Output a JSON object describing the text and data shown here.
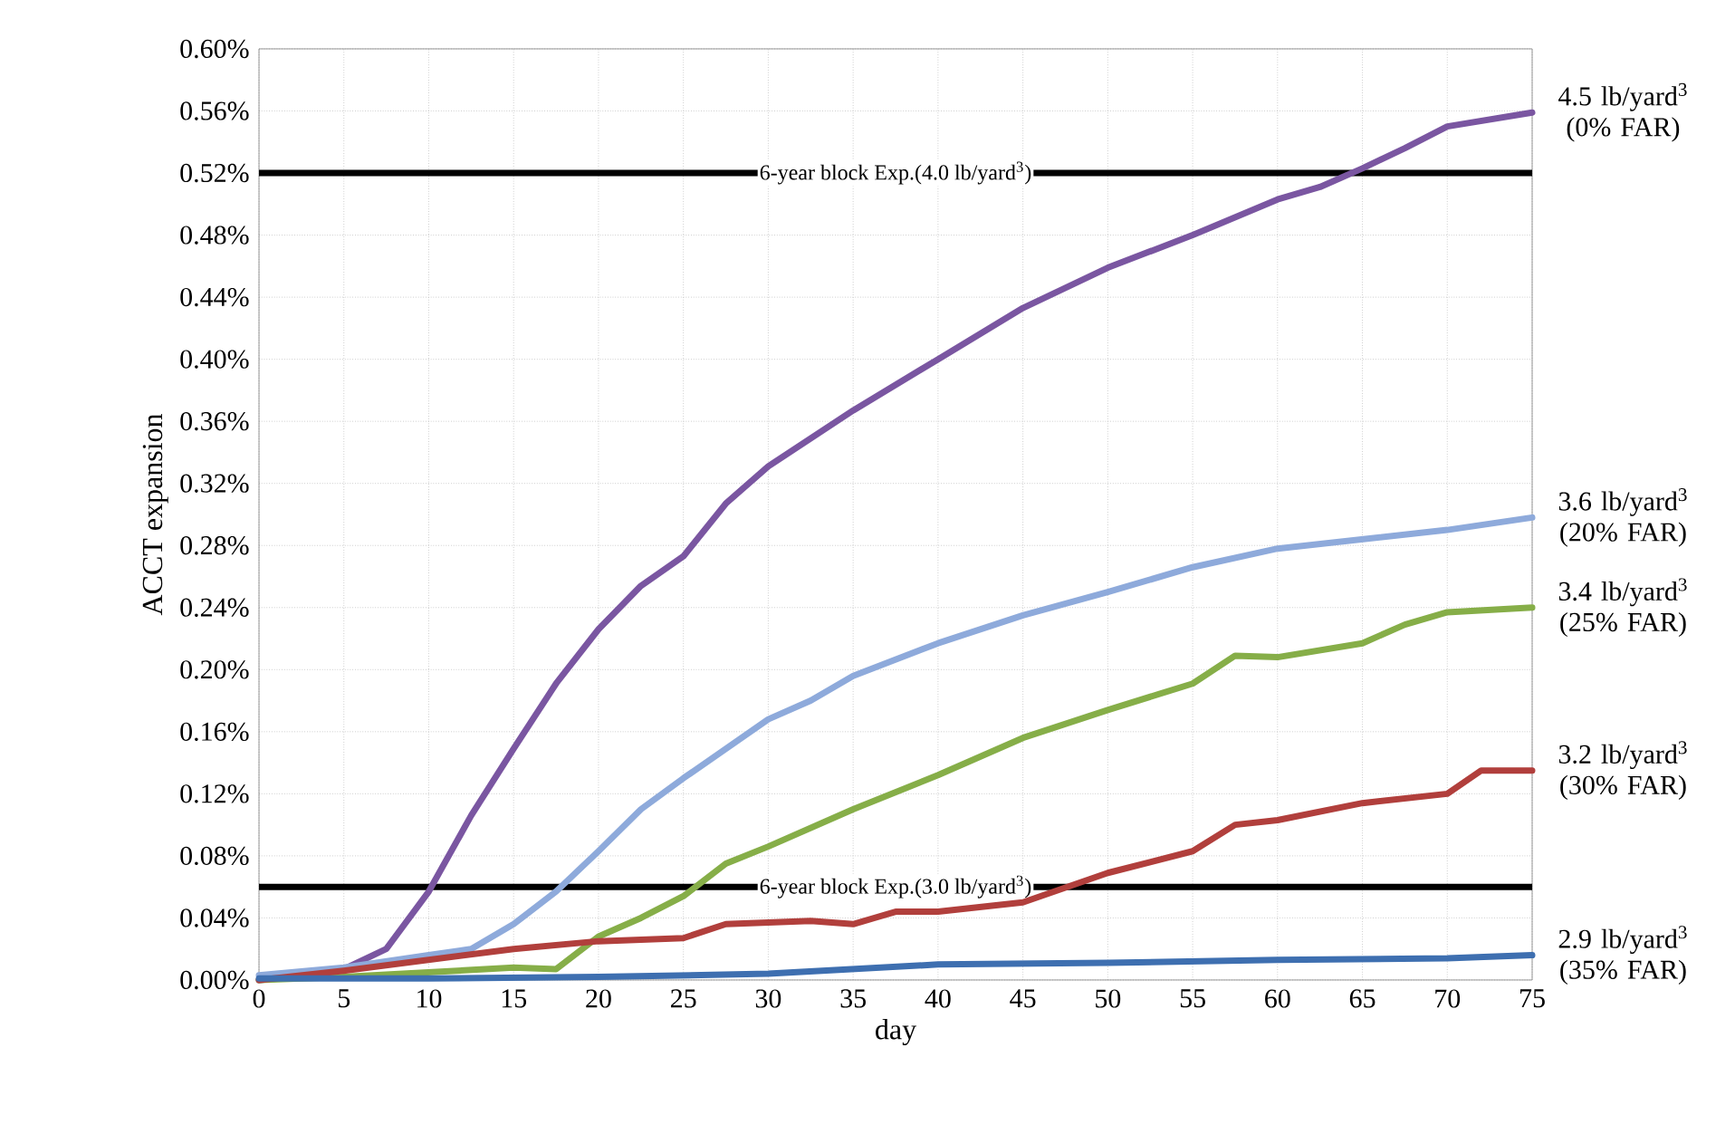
{
  "chart_data": {
    "type": "line",
    "xlabel": "day",
    "ylabel": "ACCT expansion",
    "xlim": [
      0,
      75
    ],
    "ylim": [
      0,
      0.6
    ],
    "xticks": [
      0,
      5,
      10,
      15,
      20,
      25,
      30,
      35,
      40,
      45,
      50,
      55,
      60,
      65,
      70,
      75
    ],
    "yticks": [
      {
        "value": 0,
        "label": "0.00%"
      },
      {
        "value": 0.04,
        "label": "0.04%"
      },
      {
        "value": 0.08,
        "label": "0.08%"
      },
      {
        "value": 0.12,
        "label": "0.12%"
      },
      {
        "value": 0.16,
        "label": "0.16%"
      },
      {
        "value": 0.2,
        "label": "0.20%"
      },
      {
        "value": 0.24,
        "label": "0.24%"
      },
      {
        "value": 0.28,
        "label": "0.28%"
      },
      {
        "value": 0.32,
        "label": "0.32%"
      },
      {
        "value": 0.36,
        "label": "0.36%"
      },
      {
        "value": 0.4,
        "label": "0.40%"
      },
      {
        "value": 0.44,
        "label": "0.44%"
      },
      {
        "value": 0.48,
        "label": "0.48%"
      },
      {
        "value": 0.52,
        "label": "0.52%"
      },
      {
        "value": 0.56,
        "label": "0.56%"
      },
      {
        "value": 0.6,
        "label": "0.60%"
      }
    ],
    "grid": true,
    "legend": false,
    "ref_lines": [
      {
        "axis": "y",
        "value": 0.52,
        "label": "6-year block Exp.(4.0 lb/yard$^{3}$)",
        "color": "#000000"
      },
      {
        "axis": "y",
        "value": 0.06,
        "label": "6-year block Exp.(3.0 lb/yard$^{3}$)",
        "color": "#000000"
      }
    ],
    "series": [
      {
        "name": "4.5 lb/yard$^{3}$ (0% FAR)",
        "color": "#7a56a1",
        "x": [
          0,
          2.5,
          5,
          7.5,
          10,
          12.5,
          15,
          17.5,
          20,
          22.5,
          25,
          27.5,
          30,
          35,
          40,
          45,
          50,
          55,
          60,
          62.5,
          65,
          67.5,
          70,
          75
        ],
        "values": [
          0,
          0.002,
          0.007,
          0.02,
          0.057,
          0.106,
          0.149,
          0.191,
          0.226,
          0.254,
          0.273,
          0.307,
          0.331,
          0.367,
          0.4,
          0.433,
          0.459,
          0.48,
          0.503,
          0.511,
          0.523,
          0.536,
          0.55,
          0.559
        ]
      },
      {
        "name": "3.6 lb/yard$^{3}$ (20% FAR)",
        "color": "#8eaadb",
        "x": [
          0,
          5,
          10,
          12.5,
          15,
          17.5,
          20,
          22.5,
          25,
          27.5,
          30,
          32.5,
          35,
          40,
          45,
          50,
          55,
          60,
          65,
          70,
          75
        ],
        "values": [
          0.003,
          0.008,
          0.016,
          0.02,
          0.036,
          0.057,
          0.083,
          0.11,
          0.13,
          0.149,
          0.168,
          0.18,
          0.196,
          0.217,
          0.235,
          0.25,
          0.266,
          0.278,
          0.284,
          0.29,
          0.298
        ]
      },
      {
        "name": "3.4 lb/yard$^{3}$ (25% FAR)",
        "color": "#86ae48",
        "x": [
          0,
          5,
          10,
          15,
          17.5,
          20,
          22.5,
          25,
          27.5,
          30,
          35,
          40,
          45,
          50,
          55,
          57.5,
          60,
          65,
          67.5,
          70,
          75
        ],
        "values": [
          0,
          0.002,
          0.005,
          0.008,
          0.007,
          0.028,
          0.04,
          0.054,
          0.075,
          0.086,
          0.11,
          0.132,
          0.156,
          0.174,
          0.191,
          0.209,
          0.208,
          0.217,
          0.229,
          0.237,
          0.24
        ]
      },
      {
        "name": "3.2 lb/yard$^{3}$ (30% FAR)",
        "color": "#b13f3c",
        "x": [
          0,
          5,
          10,
          15,
          20,
          25,
          27.5,
          30,
          32.5,
          35,
          37.5,
          40,
          45,
          50,
          55,
          57.5,
          60,
          65,
          70,
          72,
          75
        ],
        "values": [
          0,
          0.006,
          0.013,
          0.02,
          0.025,
          0.027,
          0.036,
          0.037,
          0.038,
          0.036,
          0.044,
          0.044,
          0.05,
          0.069,
          0.083,
          0.1,
          0.103,
          0.114,
          0.12,
          0.135,
          0.135
        ]
      },
      {
        "name": "2.9 lb/yard$^{3}$ (35% FAR)",
        "color": "#3e6fb0",
        "x": [
          0,
          10,
          20,
          30,
          40,
          50,
          60,
          70,
          75
        ],
        "values": [
          0.001,
          0.001,
          0.002,
          0.004,
          0.01,
          0.011,
          0.013,
          0.014,
          0.016
        ]
      }
    ]
  }
}
